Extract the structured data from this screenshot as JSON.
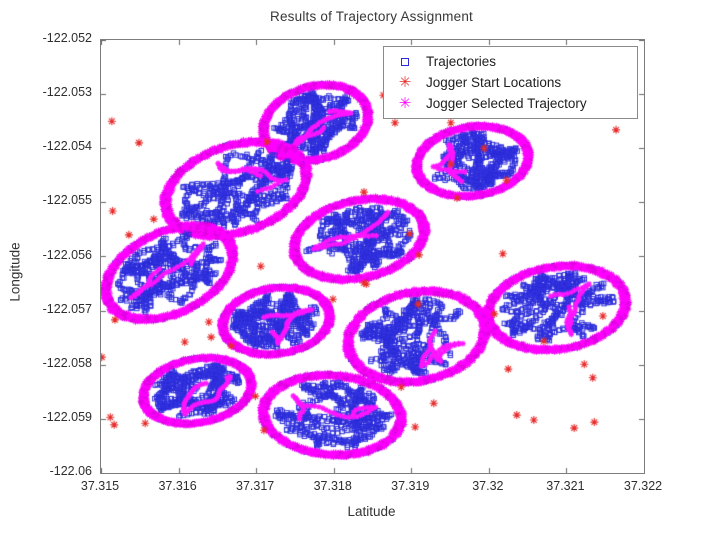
{
  "title": "Results of Trajectory Assignment",
  "legend": {
    "items": [
      {
        "label": "Trajectories",
        "marker": "open-square",
        "color": "#2a2ad8",
        "glyph": ""
      },
      {
        "label": "Jogger Start Locations",
        "marker": "asterisk",
        "color": "#e82c2c",
        "glyph": "✳"
      },
      {
        "label": "Jogger Selected Trajectory",
        "marker": "asterisk",
        "color": "#ff00ff",
        "glyph": "✳"
      }
    ]
  },
  "chart_data": {
    "type": "scatter",
    "title": "Results of Trajectory Assignment",
    "xlabel": "Latitude",
    "ylabel": "Longitude",
    "xlim": [
      37.315,
      37.322
    ],
    "ylim": [
      -122.06,
      -122.052
    ],
    "grid": false,
    "legend_position": "top-right-inside",
    "xticks": [
      {
        "value": 37.315,
        "label": "37.315"
      },
      {
        "value": 37.316,
        "label": "37.316"
      },
      {
        "value": 37.317,
        "label": "37.317"
      },
      {
        "value": 37.318,
        "label": "37.318"
      },
      {
        "value": 37.319,
        "label": "37.319"
      },
      {
        "value": 37.32,
        "label": "37.32"
      },
      {
        "value": 37.321,
        "label": "37.321"
      },
      {
        "value": 37.322,
        "label": "37.322"
      }
    ],
    "yticks": [
      {
        "value": -122.052,
        "label": "-122.052"
      },
      {
        "value": -122.053,
        "label": "-122.053"
      },
      {
        "value": -122.054,
        "label": "-122.054"
      },
      {
        "value": -122.055,
        "label": "-122.055"
      },
      {
        "value": -122.056,
        "label": "-122.056"
      },
      {
        "value": -122.057,
        "label": "-122.057"
      },
      {
        "value": -122.058,
        "label": "-122.058"
      },
      {
        "value": -122.059,
        "label": "-122.059"
      },
      {
        "value": -122.06,
        "label": "-122.06"
      }
    ],
    "series": [
      {
        "name": "Trajectories",
        "marker": "open-square",
        "color": "#2a2ad8",
        "description": "Ten dense elliptical clusters of overlapping trajectory points",
        "clusters": [
          {
            "center": [
              37.31777,
              -122.05353
            ],
            "radius": [
              0.00071,
              0.0007
            ],
            "tilt_deg": -15
          },
          {
            "center": [
              37.31674,
              -122.05475
            ],
            "radius": [
              0.00097,
              0.00083
            ],
            "tilt_deg": -18
          },
          {
            "center": [
              37.31979,
              -122.05424
            ],
            "radius": [
              0.00075,
              0.00066
            ],
            "tilt_deg": -8
          },
          {
            "center": [
              37.31833,
              -122.05568
            ],
            "radius": [
              0.00088,
              0.00074
            ],
            "tilt_deg": -12
          },
          {
            "center": [
              37.31588,
              -122.0563
            ],
            "radius": [
              0.0009,
              0.00078
            ],
            "tilt_deg": -25
          },
          {
            "center": [
              37.31726,
              -122.05719
            ],
            "radius": [
              0.00072,
              0.00063
            ],
            "tilt_deg": -8
          },
          {
            "center": [
              37.31907,
              -122.05748
            ],
            "radius": [
              0.00092,
              0.00085
            ],
            "tilt_deg": -10
          },
          {
            "center": [
              37.32088,
              -122.05695
            ],
            "radius": [
              0.00092,
              0.00079
            ],
            "tilt_deg": -8
          },
          {
            "center": [
              37.31624,
              -122.05848
            ],
            "radius": [
              0.00073,
              0.00061
            ],
            "tilt_deg": -10
          },
          {
            "center": [
              37.31798,
              -122.05893
            ],
            "radius": [
              0.00092,
              0.00076
            ],
            "tilt_deg": 4
          }
        ]
      },
      {
        "name": "Jogger Start Locations",
        "marker": "asterisk",
        "color": "#e82c2c",
        "points": [
          [
            37.31514,
            -122.0535
          ],
          [
            37.31549,
            -122.0539
          ],
          [
            37.31864,
            -122.05302
          ],
          [
            37.31879,
            -122.05353
          ],
          [
            37.32164,
            -122.05366
          ],
          [
            37.31951,
            -122.05353
          ],
          [
            37.31994,
            -122.054
          ],
          [
            37.31951,
            -122.05429
          ],
          [
            37.32023,
            -122.05459
          ],
          [
            37.31959,
            -122.05492
          ],
          [
            37.31515,
            -122.05516
          ],
          [
            37.31568,
            -122.05531
          ],
          [
            37.31536,
            -122.0556
          ],
          [
            37.31839,
            -122.05481
          ],
          [
            37.31898,
            -122.05558
          ],
          [
            37.3191,
            -122.05597
          ],
          [
            37.31839,
            -122.05649
          ],
          [
            37.31706,
            -122.05618
          ],
          [
            37.31799,
            -122.05679
          ],
          [
            37.31842,
            -122.05651
          ],
          [
            37.31518,
            -122.05717
          ],
          [
            37.31639,
            -122.05721
          ],
          [
            37.31608,
            -122.05758
          ],
          [
            37.31642,
            -122.05749
          ],
          [
            37.31668,
            -122.05765
          ],
          [
            37.31501,
            -122.05786
          ],
          [
            37.32018,
            -122.05595
          ],
          [
            37.31909,
            -122.05688
          ],
          [
            37.32007,
            -122.05706
          ],
          [
            37.32147,
            -122.0571
          ],
          [
            37.32071,
            -122.05756
          ],
          [
            37.32123,
            -122.05799
          ],
          [
            37.32134,
            -122.05824
          ],
          [
            37.32025,
            -122.05808
          ],
          [
            37.31887,
            -122.05841
          ],
          [
            37.31929,
            -122.05871
          ],
          [
            37.32036,
            -122.05893
          ],
          [
            37.32058,
            -122.05902
          ],
          [
            37.3211,
            -122.05917
          ],
          [
            37.32136,
            -122.05906
          ],
          [
            37.31905,
            -122.05915
          ],
          [
            37.31512,
            -122.05897
          ],
          [
            37.31517,
            -122.05911
          ],
          [
            37.31557,
            -122.05908
          ],
          [
            37.3171,
            -122.05921
          ],
          [
            37.31699,
            -122.05858
          ],
          [
            37.31714,
            -122.05388
          ]
        ]
      },
      {
        "name": "Jogger Selected Trajectory",
        "marker": "asterisk",
        "color": "#ff00ff",
        "description": "Magenta asterisk ring around the boundary of every cluster plus one highlighted squiggle trajectory inside each cluster"
      }
    ]
  }
}
